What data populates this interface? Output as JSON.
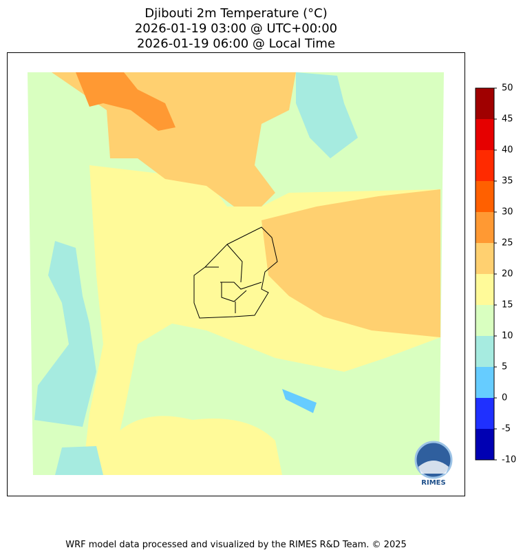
{
  "title": [
    "Djibouti 2m Temperature (°C)",
    "2026-01-19 03:00 @ UTC+00:00",
    "2026-01-19 06:00 @ Local Time"
  ],
  "colorbar": {
    "ticks": [
      -10,
      -5,
      0,
      5,
      10,
      15,
      20,
      25,
      30,
      35,
      40,
      45,
      50
    ],
    "colors": [
      "#0000b3",
      "#1f30ff",
      "#66ccff",
      "#a6ebe0",
      "#d9ffc0",
      "#fffa99",
      "#ffd070",
      "#ff9933",
      "#ff6000",
      "#ff2a00",
      "#e60000",
      "#a00000"
    ]
  },
  "logo": "RIMES",
  "footer": "WRF model data processed and visualized by the RIMES R&D Team. © 2025"
}
